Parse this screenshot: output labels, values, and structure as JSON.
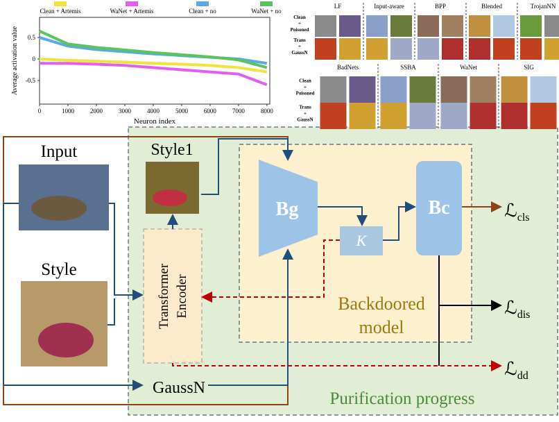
{
  "chart_data": {
    "type": "line",
    "xlabel": "Neuron index",
    "ylabel": "Average activation value",
    "x": [
      0,
      1000,
      2000,
      3000,
      4000,
      5000,
      6000,
      7000,
      8000
    ],
    "series": [
      {
        "name": "Clean + Artemis",
        "color": "#f2e33c",
        "values": [
          0,
          -0.03,
          -0.05,
          -0.07,
          -0.1,
          -0.12,
          -0.15,
          -0.2,
          -0.3
        ]
      },
      {
        "name": "WaNet + Artemis",
        "color": "#e35ef0",
        "values": [
          -0.1,
          -0.1,
          -0.12,
          -0.15,
          -0.2,
          -0.25,
          -0.3,
          -0.35,
          -0.6
        ]
      },
      {
        "name": "Clean + no",
        "color": "#5aa9e6",
        "values": [
          0.5,
          0.3,
          0.22,
          0.17,
          0.12,
          0.08,
          0.04,
          0,
          -0.1
        ]
      },
      {
        "name": "WaNet + no",
        "color": "#59c35c",
        "values": [
          0.65,
          0.35,
          0.27,
          0.21,
          0.15,
          0.1,
          0.05,
          -0.02,
          -0.2
        ]
      }
    ],
    "xlim": [
      0,
      8100
    ],
    "ylim": [
      -1.05,
      0.97
    ],
    "xticks": [
      0,
      1000,
      2000,
      3000,
      4000,
      5000,
      6000,
      7000,
      8000
    ],
    "yticks": [
      -0.5,
      0,
      0.5
    ]
  },
  "grid": {
    "top": {
      "headers": [
        "LF",
        "Input-aware",
        "BPP",
        "Blended",
        "TrojanNN"
      ],
      "rows": [
        [
          "Clean",
          "+",
          "Poisoned"
        ],
        [
          "Trans",
          "+",
          "GaussN"
        ]
      ]
    },
    "bottom": {
      "headers": [
        "BadNets",
        "SSBA",
        "WaNet",
        "SIG"
      ],
      "rows": [
        [
          "Clean",
          "+",
          "Poisoned"
        ],
        [
          "Trans",
          "+",
          "GaussN"
        ]
      ]
    }
  },
  "diagram": {
    "input": "Input",
    "style": "Style",
    "style1": "Style1",
    "encoder": [
      "Transformer",
      "Encoder"
    ],
    "bg": "Bg",
    "bc": "Bc",
    "k": "K",
    "model": [
      "Backdoored",
      "model"
    ],
    "gaussn": "GaussN",
    "progress": "Purification progress",
    "losses": [
      {
        "main": "ℒ",
        "sub": "cls"
      },
      {
        "main": "ℒ",
        "sub": "dis"
      },
      {
        "main": "ℒ",
        "sub": "dd"
      }
    ]
  }
}
